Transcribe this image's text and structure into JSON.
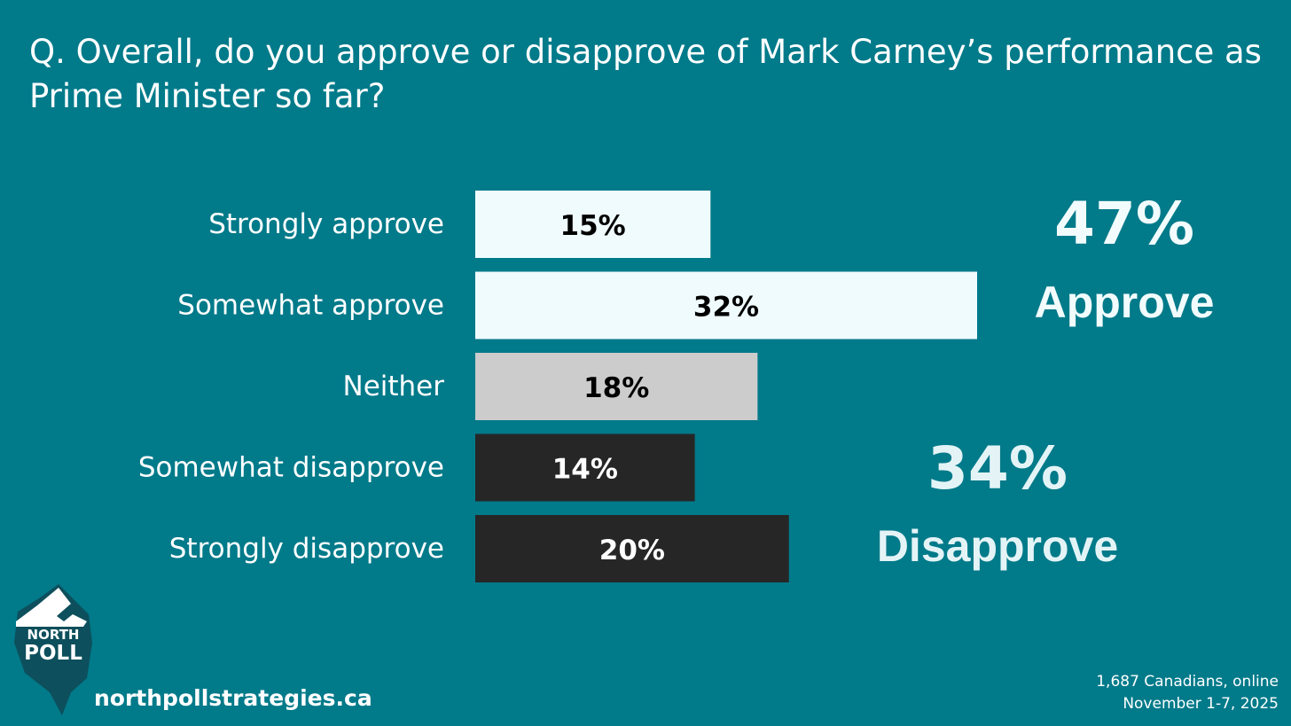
{
  "question": "Q. Overall, do you approve or disapprove of Mark Carney’s performance as Prime Minister so far?",
  "chart_data": {
    "type": "bar",
    "orientation": "horizontal",
    "categories": [
      "Strongly approve",
      "Somewhat approve",
      "Neither",
      "Somewhat disapprove",
      "Strongly disapprove"
    ],
    "values": [
      15,
      32,
      18,
      14,
      20
    ],
    "value_labels": [
      "15%",
      "32%",
      "18%",
      "14%",
      "20%"
    ],
    "unit": "%",
    "xlim": [
      0,
      35
    ],
    "bar_colors": [
      "#effbfd",
      "#effbfd",
      "#cccccc",
      "#262626",
      "#262626"
    ],
    "label_colors": [
      "#000000",
      "#000000",
      "#000000",
      "#ffffff",
      "#ffffff"
    ],
    "grid": false,
    "title": "",
    "xlabel": "",
    "ylabel": ""
  },
  "summary": {
    "approve": {
      "pct": "47%",
      "label": "Approve",
      "color": "#f2fcfd"
    },
    "disapprove": {
      "pct": "34%",
      "label": "Disapprove",
      "color": "#e4f4f6"
    }
  },
  "brand": {
    "logo_line1": "NORTH",
    "logo_line2": "POLL",
    "website": "northpollstrategies.ca"
  },
  "footnote": {
    "line1": "1,687 Canadians, online",
    "line2": "November 1-7, 2025"
  },
  "colors": {
    "background": "#017a8a",
    "logo_dark": "#0d4f5c",
    "logo_white": "#ffffff"
  }
}
